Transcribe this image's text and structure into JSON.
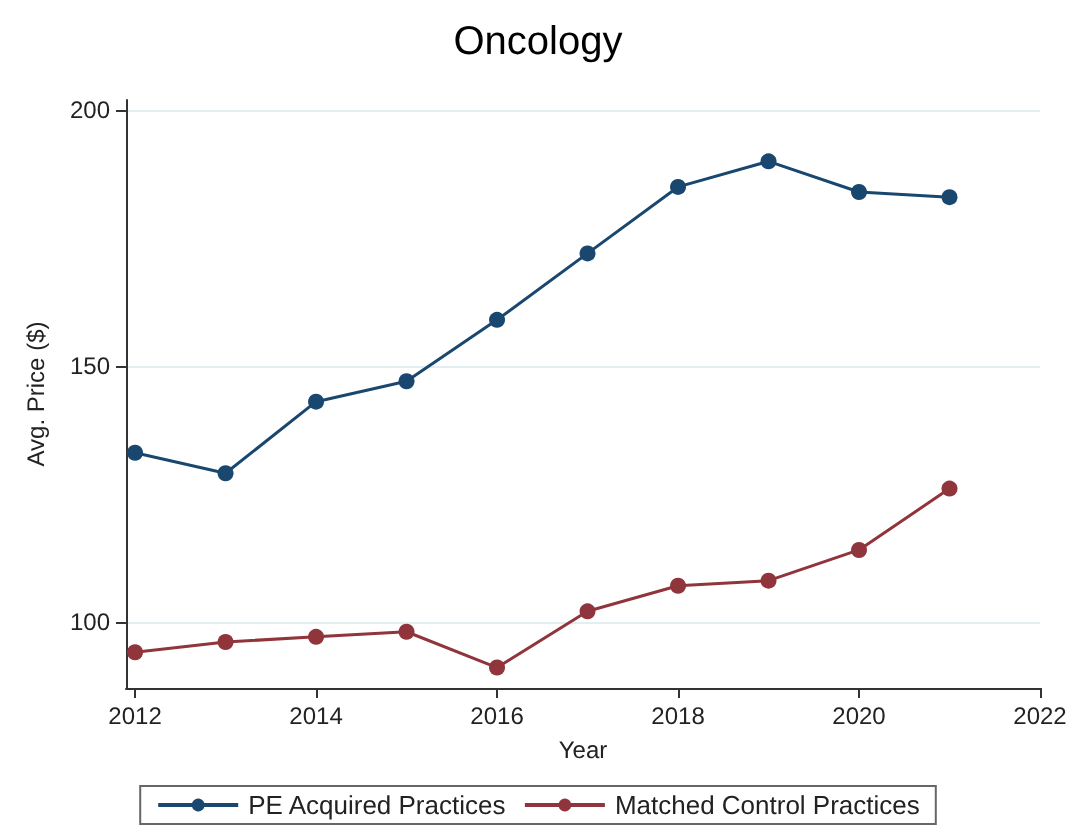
{
  "chart_data": {
    "type": "line",
    "title": "Oncology",
    "xlabel": "Year",
    "ylabel": "Avg. Price ($)",
    "x": [
      2012,
      2013,
      2014,
      2015,
      2016,
      2017,
      2018,
      2019,
      2020,
      2021
    ],
    "series": [
      {
        "name": "PE Acquired Practices",
        "color": "#1a476f",
        "values": [
          133,
          129,
          143,
          147,
          159,
          172,
          185,
          190,
          184,
          183
        ]
      },
      {
        "name": "Matched Control Practices",
        "color": "#90353b",
        "values": [
          94,
          96,
          97,
          98,
          91,
          102,
          107,
          108,
          114,
          126
        ]
      }
    ],
    "xlim": [
      2011.9,
      2022
    ],
    "ylim": [
      87,
      202
    ],
    "xticks": [
      2012,
      2014,
      2016,
      2018,
      2020,
      2022
    ],
    "yticks": [
      100,
      150,
      200
    ],
    "grid": "y",
    "legend": "bottom",
    "marker": "circle",
    "line_style": "solid"
  }
}
